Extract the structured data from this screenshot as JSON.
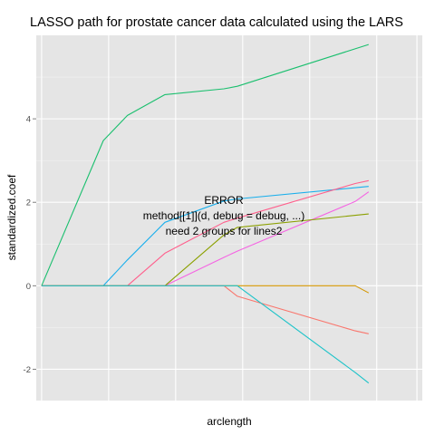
{
  "chart_data": {
    "type": "line",
    "title": "LASSO path for prostate cancer data calculated using the LARS",
    "xlabel": "arclength",
    "ylabel": "standardized.coef",
    "xlim": [
      -0.2,
      14.2
    ],
    "ylim": [
      -2.75,
      6.0
    ],
    "y_ticks": [
      -2,
      0,
      2,
      4
    ],
    "y_tick_labels": [
      "-2",
      "0",
      "2",
      "4"
    ],
    "x_gridlines": [
      0,
      2.5,
      5,
      7.5,
      10,
      12.5,
      14
    ],
    "grid": true,
    "legend": "none",
    "annotation": [
      "ERROR",
      "method[[1]](d, debug = debug, ...)",
      "need 2 groups for lines2"
    ],
    "series": [
      {
        "color": "#1ABF6E",
        "x": [
          0,
          2.3,
          3.2,
          4.6,
          6.8,
          7.3,
          12.2
        ],
        "y": [
          0,
          3.48,
          4.08,
          4.58,
          4.72,
          4.78,
          5.78
        ]
      },
      {
        "color": "#1AAFEC",
        "x": [
          0,
          2.3,
          3.2,
          4.6,
          6.8,
          7.3,
          12.2
        ],
        "y": [
          0,
          0,
          0.62,
          1.52,
          2.03,
          2.08,
          2.38
        ]
      },
      {
        "color": "#F564E3",
        "x": [
          0,
          3.2,
          4.6,
          6.8,
          7.3,
          11.7,
          12.2
        ],
        "y": [
          0,
          0,
          0,
          0.68,
          0.83,
          2.02,
          2.25
        ]
      },
      {
        "color": "#FF5F8C",
        "x": [
          0,
          3.2,
          4.6,
          6.8,
          7.3,
          11.7,
          12.2
        ],
        "y": [
          0,
          0,
          0.78,
          1.52,
          1.62,
          2.45,
          2.52
        ]
      },
      {
        "color": "#8BA000",
        "x": [
          0,
          4.6,
          6.8,
          7.3,
          12.2
        ],
        "y": [
          0,
          0,
          1.22,
          1.4,
          1.72
        ]
      },
      {
        "color": "#D49600",
        "x": [
          0,
          7.3,
          11.7,
          12.2
        ],
        "y": [
          0,
          0,
          0,
          -0.17
        ]
      },
      {
        "color": "#F9766D",
        "x": [
          0,
          6.8,
          7.3,
          11.7,
          12.2
        ],
        "y": [
          0,
          0,
          -0.25,
          -1.08,
          -1.15
        ]
      },
      {
        "color": "#1CC3C9",
        "x": [
          0,
          6.8,
          7.3,
          11.7,
          12.2
        ],
        "y": [
          0,
          0,
          0,
          -2.08,
          -2.33
        ]
      }
    ]
  }
}
